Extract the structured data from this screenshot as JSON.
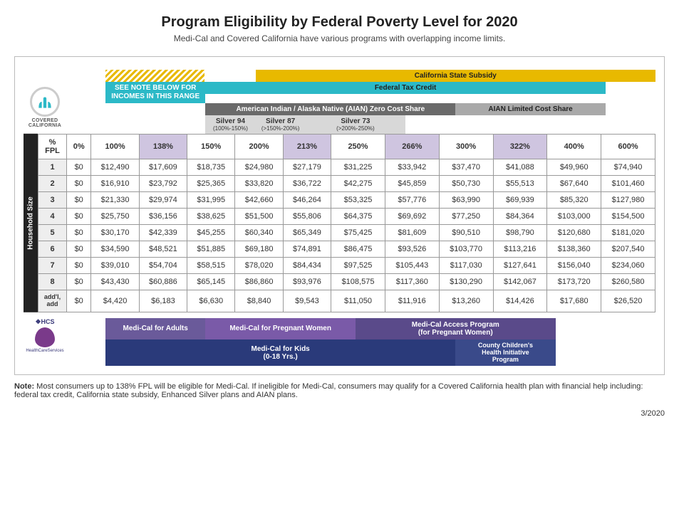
{
  "title": "Program Eligibility by Federal Poverty Level for 2020",
  "subtitle": "Medi-Cal and Covered California have various programs with overlapping income limits.",
  "logo": {
    "line1": "COVERED",
    "line2": "CALIFORNIA"
  },
  "bands": {
    "see_note": "SEE NOTE BELOW FOR INCOMES IN THIS RANGE",
    "ca_subsidy": "California State Subsidy",
    "fed_credit": "Federal Tax Credit",
    "aian_zero": "American Indian / Alaska Native (AIAN) Zero Cost Share",
    "aian_lim": "AIAN Limited Cost Share",
    "silver94": "Silver 94",
    "silver94_sub": "(100%-150%)",
    "silver87": "Silver 87",
    "silver87_sub": "(>150%-200%)",
    "silver73": "Silver 73",
    "silver73_sub": "(>200%-250%)"
  },
  "table": {
    "fpl_label": "% FPL",
    "hh_label": "Household Size",
    "headers": [
      "0%",
      "100%",
      "138%",
      "150%",
      "200%",
      "213%",
      "250%",
      "266%",
      "300%",
      "322%",
      "400%",
      "600%"
    ],
    "shade_cols": [
      2,
      5,
      7,
      9
    ],
    "rows": [
      {
        "label": "1",
        "cells": [
          "$0",
          "$12,490",
          "$17,609",
          "$18,735",
          "$24,980",
          "$27,179",
          "$31,225",
          "$33,942",
          "$37,470",
          "$41,088",
          "$49,960",
          "$74,940"
        ]
      },
      {
        "label": "2",
        "cells": [
          "$0",
          "$16,910",
          "$23,792",
          "$25,365",
          "$33,820",
          "$36,722",
          "$42,275",
          "$45,859",
          "$50,730",
          "$55,513",
          "$67,640",
          "$101,460"
        ]
      },
      {
        "label": "3",
        "cells": [
          "$0",
          "$21,330",
          "$29,974",
          "$31,995",
          "$42,660",
          "$46,264",
          "$53,325",
          "$57,776",
          "$63,990",
          "$69,939",
          "$85,320",
          "$127,980"
        ]
      },
      {
        "label": "4",
        "cells": [
          "$0",
          "$25,750",
          "$36,156",
          "$38,625",
          "$51,500",
          "$55,806",
          "$64,375",
          "$69,692",
          "$77,250",
          "$84,364",
          "$103,000",
          "$154,500"
        ]
      },
      {
        "label": "5",
        "cells": [
          "$0",
          "$30,170",
          "$42,339",
          "$45,255",
          "$60,340",
          "$65,349",
          "$75,425",
          "$81,609",
          "$90,510",
          "$98,790",
          "$120,680",
          "$181,020"
        ]
      },
      {
        "label": "6",
        "cells": [
          "$0",
          "$34,590",
          "$48,521",
          "$51,885",
          "$69,180",
          "$74,891",
          "$86,475",
          "$93,526",
          "$103,770",
          "$113,216",
          "$138,360",
          "$207,540"
        ]
      },
      {
        "label": "7",
        "cells": [
          "$0",
          "$39,010",
          "$54,704",
          "$58,515",
          "$78,020",
          "$84,434",
          "$97,525",
          "$105,443",
          "$117,030",
          "$127,641",
          "$156,040",
          "$234,060"
        ]
      },
      {
        "label": "8",
        "cells": [
          "$0",
          "$43,430",
          "$60,886",
          "$65,145",
          "$86,860",
          "$93,976",
          "$108,575",
          "$117,360",
          "$130,290",
          "$142,067",
          "$173,720",
          "$260,580"
        ]
      },
      {
        "label": "add'l,\nadd",
        "cells": [
          "$0",
          "$4,420",
          "$6,183",
          "$6,630",
          "$8,840",
          "$9,543",
          "$11,050",
          "$11,916",
          "$13,260",
          "$14,426",
          "$17,680",
          "$26,520"
        ]
      }
    ]
  },
  "programs": {
    "dhcs": "❖HCS",
    "dhcs_sub": "HealthCareServices",
    "mc_adults": "Medi-Cal for Adults",
    "mc_preg": "Medi-Cal for Pregnant Women",
    "mc_access": "Medi-Cal Access Program\n(for Pregnant Women)",
    "mc_kids": "Medi-Cal for Kids\n(0-18 Yrs.)",
    "cchip": "County Children's\nHealth Initiative\nProgram"
  },
  "note_label": "Note:",
  "note": " Most consumers up to 138% FPL will be eligible for Medi-Cal. If ineligible for Medi-Cal, consumers may qualify for a Covered California health plan with financial help including: federal tax credit, California state subsidy, Enhanced Silver plans and AIAN plans.",
  "footer_date": "3/2020",
  "colors": {
    "gold": "#e8b900",
    "teal": "#2cb9c7",
    "gray_dark": "#6a6a6a",
    "gray_light": "#a9a9a9",
    "silver": "#d8d8d8",
    "shade_header": "#cfc5e0",
    "mc_adults": "#6a5a9a",
    "mc_preg": "#7a5aa8",
    "mc_access": "#5a4a8a",
    "mc_kids": "#2a3a7a",
    "cchip": "#3a4a8a"
  }
}
